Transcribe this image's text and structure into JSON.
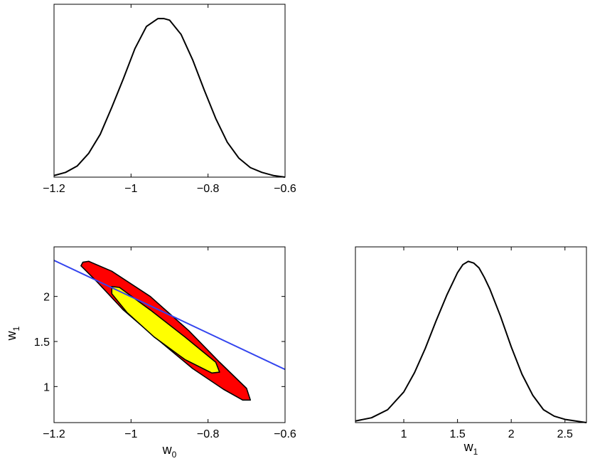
{
  "chart_data": [
    {
      "type": "line",
      "title": "",
      "xlabel": "",
      "ylabel": "",
      "xlim": [
        -1.2,
        -0.6
      ],
      "x_ticks": [
        -1.2,
        -1,
        -0.8,
        -0.6
      ],
      "x_tick_labels": [
        "−1.2",
        "−1",
        "−0.8",
        "−0.6"
      ],
      "y_ticks": [],
      "grid": false,
      "line_color": "#000000",
      "series": [
        {
          "x": [
            -1.2,
            -1.17,
            -1.14,
            -1.11,
            -1.08,
            -1.05,
            -1.02,
            -0.99,
            -0.96,
            -0.93,
            -0.915,
            -0.9,
            -0.87,
            -0.84,
            -0.81,
            -0.78,
            -0.75,
            -0.72,
            -0.69,
            -0.66,
            -0.63,
            -0.6
          ],
          "y": [
            0.01,
            0.03,
            0.07,
            0.15,
            0.27,
            0.44,
            0.62,
            0.81,
            0.95,
            1.0,
            1.0,
            0.99,
            0.9,
            0.74,
            0.55,
            0.37,
            0.22,
            0.12,
            0.06,
            0.03,
            0.01,
            0.0
          ]
        }
      ]
    },
    {
      "type": "contour",
      "title": "",
      "xlabel_main": "w",
      "xlabel_sub": "0",
      "ylabel_main": "w",
      "ylabel_sub": "1",
      "xlim": [
        -1.2,
        -0.6
      ],
      "ylim": [
        0.6,
        2.55
      ],
      "x_ticks": [
        -1.2,
        -1,
        -0.8,
        -0.6
      ],
      "x_tick_labels": [
        "−1.2",
        "−1",
        "−0.8",
        "−0.6"
      ],
      "y_ticks": [
        1,
        1.5,
        2
      ],
      "y_tick_labels": [
        "1",
        "1.5",
        "2"
      ],
      "grid": false,
      "regions": [
        {
          "color": "#ff0000",
          "polygon": [
            [
              -1.125,
              2.38
            ],
            [
              -1.11,
              2.39
            ],
            [
              -1.05,
              2.28
            ],
            [
              -0.95,
              2.0
            ],
            [
              -0.85,
              1.62
            ],
            [
              -0.77,
              1.27
            ],
            [
              -0.7,
              0.98
            ],
            [
              -0.69,
              0.85
            ],
            [
              -0.71,
              0.85
            ],
            [
              -0.76,
              0.97
            ],
            [
              -0.84,
              1.2
            ],
            [
              -0.93,
              1.52
            ],
            [
              -1.02,
              1.85
            ],
            [
              -1.09,
              2.17
            ],
            [
              -1.13,
              2.34
            ]
          ]
        },
        {
          "color": "#ffff00",
          "polygon": [
            [
              -1.05,
              2.11
            ],
            [
              -1.03,
              2.1
            ],
            [
              -0.95,
              1.85
            ],
            [
              -0.86,
              1.55
            ],
            [
              -0.78,
              1.27
            ],
            [
              -0.77,
              1.16
            ],
            [
              -0.79,
              1.15
            ],
            [
              -0.86,
              1.3
            ],
            [
              -0.94,
              1.55
            ],
            [
              -1.01,
              1.82
            ],
            [
              -1.05,
              2.03
            ]
          ]
        }
      ],
      "line": {
        "color": "#3344ee",
        "x": [
          -1.2,
          -0.6
        ],
        "y": [
          2.4,
          1.19
        ]
      }
    },
    {
      "type": "line",
      "title": "",
      "xlabel_main": "w",
      "xlabel_sub": "1",
      "ylabel": "",
      "xlim": [
        0.55,
        2.7
      ],
      "x_ticks": [
        1,
        1.5,
        2,
        2.5
      ],
      "x_tick_labels": [
        "1",
        "1.5",
        "2",
        "2.5"
      ],
      "y_ticks": [],
      "grid": false,
      "line_color": "#000000",
      "series": [
        {
          "x": [
            0.55,
            0.7,
            0.85,
            1.0,
            1.1,
            1.2,
            1.3,
            1.4,
            1.5,
            1.55,
            1.6,
            1.65,
            1.7,
            1.75,
            1.8,
            1.9,
            2.0,
            2.1,
            2.2,
            2.3,
            2.4,
            2.5,
            2.6,
            2.7
          ],
          "y": [
            0.01,
            0.03,
            0.08,
            0.19,
            0.31,
            0.46,
            0.63,
            0.79,
            0.93,
            0.98,
            1.0,
            0.99,
            0.96,
            0.9,
            0.83,
            0.66,
            0.47,
            0.3,
            0.17,
            0.08,
            0.04,
            0.02,
            0.01,
            0.0
          ]
        }
      ]
    }
  ]
}
